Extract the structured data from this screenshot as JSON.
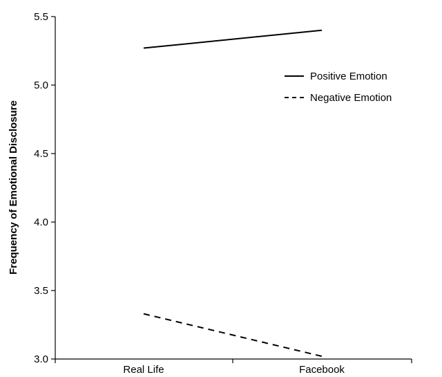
{
  "chart_data": {
    "type": "line",
    "categories": [
      "Real Life",
      "Facebook"
    ],
    "series": [
      {
        "name": "Positive Emotion",
        "values": [
          5.27,
          5.4
        ],
        "dash": "solid",
        "color": "#000000"
      },
      {
        "name": "Negative Emotion",
        "values": [
          3.33,
          3.02
        ],
        "dash": "dashed",
        "color": "#000000"
      }
    ],
    "title": "",
    "xlabel": "",
    "ylabel": "Frequency of Emotional Disclosure",
    "ylim": [
      3.0,
      5.5
    ],
    "yticks": [
      "3.0",
      "3.5",
      "4.0",
      "4.5",
      "5.0",
      "5.5"
    ],
    "grid": false,
    "legend_position": "right"
  }
}
